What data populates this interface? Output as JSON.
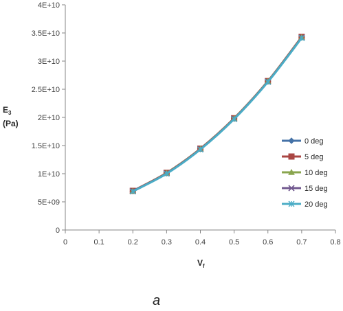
{
  "chart_data": {
    "type": "line",
    "x": [
      0.2,
      0.3,
      0.4,
      0.5,
      0.6,
      0.7
    ],
    "xlim": [
      0,
      0.8
    ],
    "ylim": [
      0,
      40000000000
    ],
    "x_ticks": [
      0,
      0.1,
      0.2,
      0.3,
      0.4,
      0.5,
      0.6,
      0.7,
      0.8
    ],
    "x_tick_labels": [
      "0",
      "0.1",
      "0.2",
      "0.3",
      "0.4",
      "0.5",
      "0.6",
      "0.7",
      "0.8"
    ],
    "y_ticks": [
      0,
      5000000000,
      10000000000,
      15000000000,
      20000000000,
      25000000000,
      30000000000,
      35000000000,
      40000000000
    ],
    "y_tick_labels": [
      "0",
      "5E+09",
      "1E+10",
      "1.5E+10",
      "2E+10",
      "2.5E+10",
      "3E+10",
      "3.5E+10",
      "4E+10"
    ],
    "xlabel_main": "V",
    "xlabel_sub": "f",
    "ylabel_main": "E",
    "ylabel_sub": "3",
    "ylabel_unit": "(Pa)",
    "grid": false,
    "legend_position": "right",
    "series": [
      {
        "name": "0 deg",
        "values": [
          6900000000,
          10100000000,
          14400000000,
          19800000000,
          26400000000,
          34200000000
        ],
        "color": "#4572A7",
        "marker": "diamond"
      },
      {
        "name": "5 deg",
        "values": [
          6950000000,
          10150000000,
          14450000000,
          19850000000,
          26450000000,
          34300000000
        ],
        "color": "#AA4643",
        "marker": "square"
      },
      {
        "name": "10 deg",
        "values": [
          6900000000,
          10100000000,
          14400000000,
          19800000000,
          26400000000,
          34200000000
        ],
        "color": "#89A54E",
        "marker": "triangle"
      },
      {
        "name": "15 deg",
        "values": [
          6900000000,
          10050000000,
          14350000000,
          19750000000,
          26350000000,
          34150000000
        ],
        "color": "#71588F",
        "marker": "x"
      },
      {
        "name": "20 deg",
        "values": [
          6850000000,
          10000000000,
          14300000000,
          19700000000,
          26300000000,
          34100000000
        ],
        "color": "#4BACC6",
        "marker": "star"
      }
    ]
  },
  "caption": "a"
}
